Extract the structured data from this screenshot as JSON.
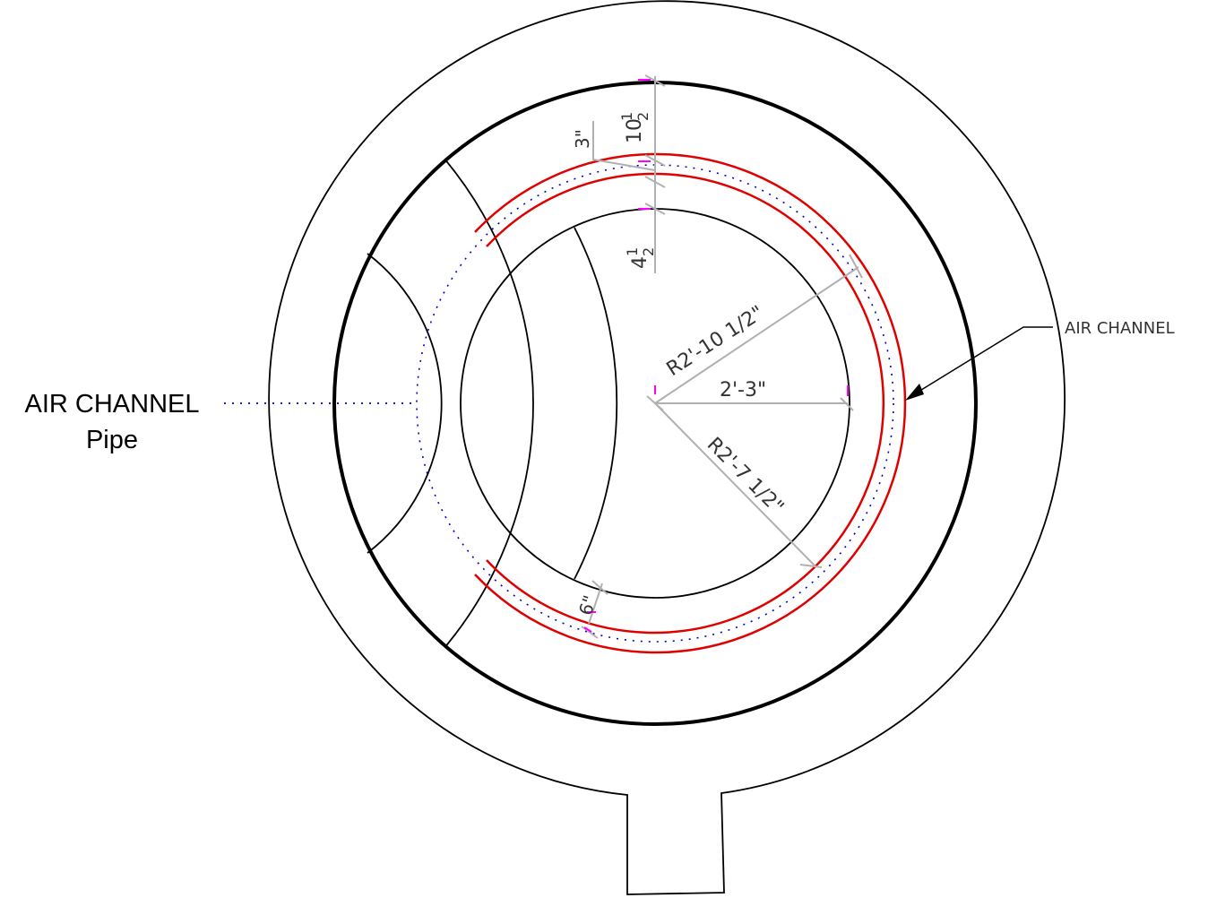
{
  "labels": {
    "air_channel_pipe_line1": "AIR CHANNEL",
    "air_channel_pipe_line2": "Pipe",
    "air_channel": "AIR CHANNEL"
  },
  "dimensions": {
    "top_gap": "10",
    "top_gap_fraction_num": "1",
    "top_gap_fraction_den": "2",
    "ring_gap": "3\"",
    "inner_gap": "4",
    "inner_gap_fraction_num": "1",
    "inner_gap_fraction_den": "2",
    "outer_radius": "R2'-10 1/2\"",
    "inner_radius_horizontal": "2'-3\"",
    "channel_radius": "R2'-7 1/2\"",
    "bottom_offset": "6\""
  },
  "colors": {
    "outline": "#000000",
    "air_channel": "#ff0000",
    "pipe_dotted": "#0000cc",
    "dimension": "#b0b0b0",
    "marker": "#ff00ff"
  }
}
